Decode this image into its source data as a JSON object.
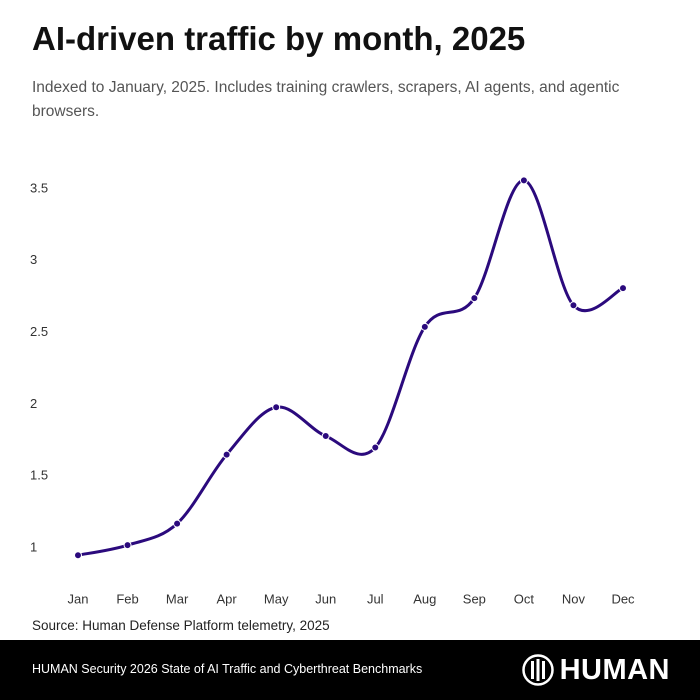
{
  "chart_data": {
    "type": "line",
    "title": "AI-driven traffic by month, 2025",
    "subtitle": "Indexed to January, 2025. Includes training crawlers, scrapers, AI agents, and agentic browsers.",
    "source": "Source: Human Defense Platform telemetry, 2025",
    "categories": [
      "Jan",
      "Feb",
      "Mar",
      "Apr",
      "May",
      "Jun",
      "Jul",
      "Aug",
      "Sep",
      "Oct",
      "Nov",
      "Dec"
    ],
    "values": [
      0.95,
      1.02,
      1.17,
      1.65,
      1.98,
      1.78,
      1.7,
      2.54,
      2.74,
      3.56,
      2.69,
      2.81
    ],
    "color": "#2b0a7d",
    "ylim": [
      0.9,
      3.6
    ],
    "yticks": [
      1,
      1.5,
      2,
      2.5,
      3,
      3.5
    ],
    "grid": false
  },
  "footer": {
    "text": "HUMAN Security 2026 State of AI Traffic and Cyberthreat Benchmarks",
    "logo": "HUMAN"
  }
}
